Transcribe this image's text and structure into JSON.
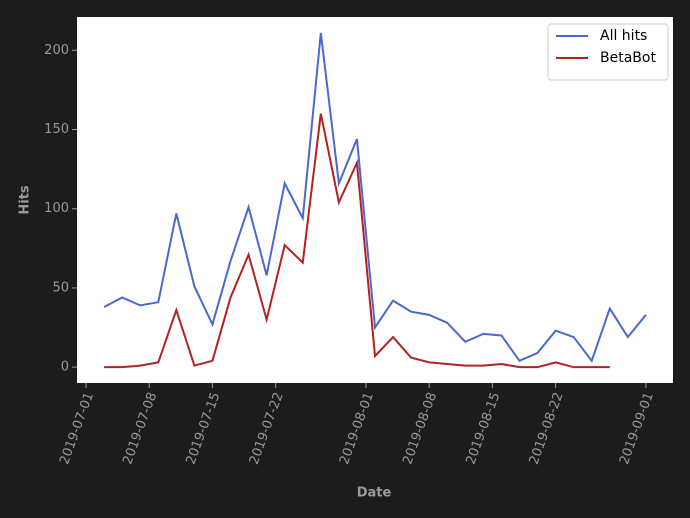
{
  "chart_data": {
    "type": "line",
    "x_label": "Date",
    "y_label": "Hits",
    "x": [
      "2019-07-03",
      "2019-07-05",
      "2019-07-07",
      "2019-07-09",
      "2019-07-11",
      "2019-07-13",
      "2019-07-15",
      "2019-07-17",
      "2019-07-19",
      "2019-07-21",
      "2019-07-23",
      "2019-07-25",
      "2019-07-27",
      "2019-07-29",
      "2019-07-31",
      "2019-08-02",
      "2019-08-04",
      "2019-08-06",
      "2019-08-08",
      "2019-08-10",
      "2019-08-12",
      "2019-08-14",
      "2019-08-16",
      "2019-08-18",
      "2019-08-20",
      "2019-08-22",
      "2019-08-24",
      "2019-08-26",
      "2019-08-28",
      "2019-08-30",
      "2019-09-01"
    ],
    "series": [
      {
        "name": "All hits",
        "color": "#4a68d0",
        "values": [
          38,
          44,
          39,
          41,
          97,
          51,
          27,
          67,
          101,
          58,
          116,
          94,
          211,
          116,
          144,
          25,
          42,
          35,
          33,
          28,
          16,
          21,
          20,
          4,
          9,
          23,
          19,
          4,
          37,
          19,
          33
        ]
      },
      {
        "name": "BetaBot",
        "color": "#b22222",
        "values": [
          0,
          0,
          1,
          3,
          36,
          1,
          4,
          44,
          71,
          30,
          77,
          66,
          160,
          104,
          129,
          7,
          19,
          6,
          3,
          2,
          1,
          1,
          2,
          0,
          0,
          3,
          0,
          0,
          0,
          null,
          null
        ]
      }
    ],
    "xlim": [
      "2019-06-30",
      "2019-09-04"
    ],
    "xticks": [
      "2019-07-01",
      "2019-07-08",
      "2019-07-15",
      "2019-07-22",
      "2019-08-01",
      "2019-08-08",
      "2019-08-15",
      "2019-08-22",
      "2019-09-01"
    ],
    "ylim": [
      -10,
      221
    ],
    "yticks": [
      0,
      50,
      100,
      150,
      200
    ],
    "legend": "upper right",
    "grid": false
  }
}
